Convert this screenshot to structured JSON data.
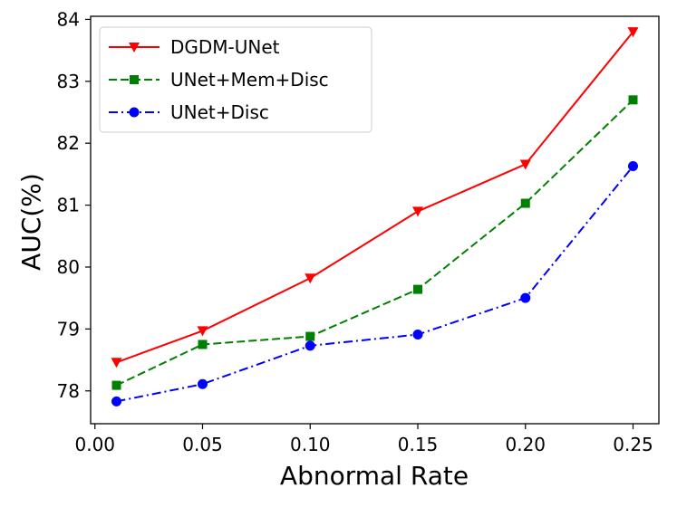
{
  "chart_data": {
    "type": "line",
    "title": "",
    "xlabel": "Abnormal Rate",
    "ylabel": "AUC(%)",
    "xlim": [
      -0.002,
      0.262
    ],
    "ylim": [
      77.47,
      84.05
    ],
    "xticks": [
      0.0,
      0.05,
      0.1,
      0.15,
      0.2,
      0.25
    ],
    "xtick_labels": [
      "0.00",
      "0.05",
      "0.10",
      "0.15",
      "0.20",
      "0.25"
    ],
    "yticks": [
      78,
      79,
      80,
      81,
      82,
      83,
      84
    ],
    "ytick_labels": [
      "78",
      "79",
      "80",
      "81",
      "82",
      "83",
      "84"
    ],
    "grid": false,
    "legend_position": "top-left",
    "x": [
      0.01,
      0.05,
      0.1,
      0.15,
      0.2,
      0.25
    ],
    "series": [
      {
        "name": "DGDM-UNet",
        "values": [
          78.46,
          78.97,
          79.82,
          80.9,
          81.66,
          83.8
        ],
        "color": "#ff0000",
        "line_style": "solid",
        "marker": "triangle-down"
      },
      {
        "name": "UNet+Mem+Disc",
        "values": [
          78.09,
          78.75,
          78.88,
          79.64,
          81.03,
          82.7
        ],
        "color": "#008000",
        "line_style": "dashed",
        "marker": "square"
      },
      {
        "name": "UNet+Disc",
        "values": [
          77.83,
          78.11,
          78.73,
          78.91,
          79.5,
          81.63
        ],
        "color": "#0000ff",
        "line_style": "dashdot",
        "marker": "circle"
      }
    ]
  }
}
